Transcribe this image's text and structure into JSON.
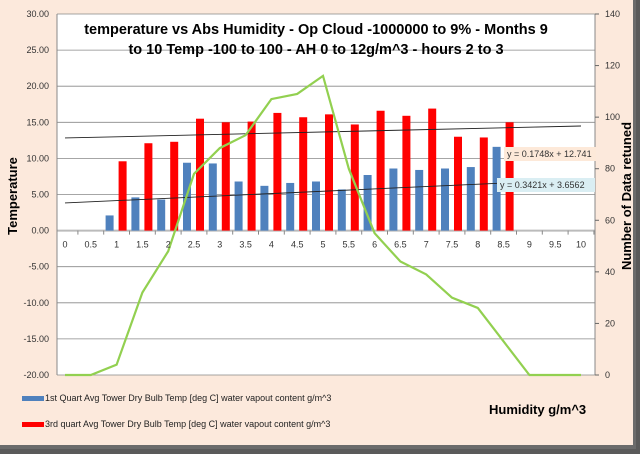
{
  "chart_data": {
    "type": "bar",
    "title_lines": [
      "temperature vs Abs Humidity  - Op Cloud -1000000 to 9% - Months 9",
      "to 10 Temp -100 to 100 - AH 0 to 12g/m^3 - hours 2 to 3"
    ],
    "xlabel": "Humidity  g/m^3",
    "ylabel": "Temperature",
    "y2label": "Number of Data retuned",
    "categories": [
      "0",
      "0.5",
      "1",
      "1.5",
      "2",
      "2.5",
      "3",
      "3.5",
      "4",
      "4.5",
      "5",
      "5.5",
      "6",
      "6.5",
      "7",
      "7.5",
      "8",
      "8.5",
      "9",
      "9.5",
      "10"
    ],
    "ylim": [
      -20,
      30
    ],
    "yticks": [
      "30.00",
      "25.00",
      "20.00",
      "15.00",
      "10.00",
      "5.00",
      "0.00",
      "-5.00",
      "-10.00",
      "-15.00",
      "-20.00"
    ],
    "y2lim": [
      0,
      140
    ],
    "y2ticks": [
      "140",
      "120",
      "100",
      "80",
      "60",
      "40",
      "20",
      "0"
    ],
    "grid": true,
    "legend_position": "bottom-left",
    "series": [
      {
        "name": "1st Quart Avg Tower Dry Bulb Temp [deg C] water vapout content g/m^3",
        "type": "bar",
        "axis": "left",
        "color": "#4f81bd",
        "values": [
          null,
          null,
          2.1,
          4.6,
          4.3,
          9.4,
          9.3,
          6.8,
          6.2,
          6.6,
          6.8,
          5.7,
          7.7,
          8.6,
          8.4,
          8.6,
          8.8,
          11.6,
          null,
          null,
          null
        ]
      },
      {
        "name": "3rd quart Avg Tower Dry Bulb Temp [deg C] water vapout content g/m^3",
        "type": "bar",
        "axis": "left",
        "color": "#ff0000",
        "values": [
          null,
          null,
          9.6,
          12.1,
          12.3,
          15.5,
          15.0,
          15.1,
          16.3,
          15.7,
          16.1,
          14.7,
          16.6,
          15.9,
          16.9,
          13.0,
          12.9,
          15.0,
          null,
          null,
          null
        ]
      },
      {
        "name": "Number of Data retuned",
        "type": "line",
        "axis": "right",
        "color": "#92d050",
        "values": [
          0,
          0,
          4,
          32,
          48,
          78,
          88,
          93,
          107,
          109,
          116,
          80,
          55,
          44,
          39,
          30,
          26,
          13,
          0,
          0,
          0
        ]
      }
    ],
    "trendlines": [
      {
        "label": "y = 0.1748x + 12.741",
        "slope": 0.1748,
        "intercept": 12.741,
        "box_color": "#fde9d9"
      },
      {
        "label": "y = 0.3421x + 3.6562",
        "slope": 0.3421,
        "intercept": 3.6562,
        "box_color": "#daeef3"
      }
    ]
  }
}
